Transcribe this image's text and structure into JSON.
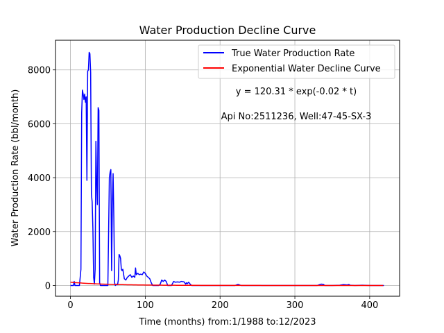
{
  "chart_data": {
    "type": "line",
    "title": "Water Production Decline Curve",
    "xlabel": "Time (months) from:1/1988 to:12/2023",
    "ylabel": "Water Production Rate (bbl/month)",
    "xlim": [
      -20,
      440
    ],
    "ylim": [
      -400,
      9100
    ],
    "xticks": [
      0,
      100,
      200,
      300,
      400
    ],
    "yticks": [
      0,
      2000,
      4000,
      6000,
      8000
    ],
    "grid": true,
    "legend_position": "top-right",
    "annotations": [
      "y = 120.31 * exp(-0.02 * t)",
      "Api No:2511236, Well:47-45-SX-3"
    ],
    "series": [
      {
        "name": "True Water Production Rate",
        "color": "#0000ff",
        "points": [
          [
            0,
            0
          ],
          [
            2,
            0
          ],
          [
            4,
            0
          ],
          [
            5,
            150
          ],
          [
            6,
            0
          ],
          [
            8,
            0
          ],
          [
            10,
            0
          ],
          [
            12,
            0
          ],
          [
            13,
            300
          ],
          [
            14,
            600
          ],
          [
            15,
            6400
          ],
          [
            16,
            7250
          ],
          [
            17,
            7100
          ],
          [
            18,
            6900
          ],
          [
            19,
            7100
          ],
          [
            20,
            6800
          ],
          [
            21,
            7000
          ],
          [
            22,
            3900
          ],
          [
            23,
            7950
          ],
          [
            24,
            8000
          ],
          [
            25,
            8650
          ],
          [
            26,
            8600
          ],
          [
            27,
            7900
          ],
          [
            28,
            3400
          ],
          [
            29,
            3100
          ],
          [
            30,
            2100
          ],
          [
            31,
            300
          ],
          [
            32,
            50
          ],
          [
            33,
            600
          ],
          [
            34,
            5350
          ],
          [
            35,
            3800
          ],
          [
            36,
            3000
          ],
          [
            37,
            6600
          ],
          [
            38,
            6500
          ],
          [
            39,
            100
          ],
          [
            40,
            0
          ],
          [
            42,
            0
          ],
          [
            45,
            0
          ],
          [
            48,
            0
          ],
          [
            50,
            0
          ],
          [
            51,
            2000
          ],
          [
            52,
            4000
          ],
          [
            53,
            4200
          ],
          [
            54,
            4300
          ],
          [
            55,
            550
          ],
          [
            56,
            3000
          ],
          [
            57,
            4150
          ],
          [
            58,
            2500
          ],
          [
            59,
            100
          ],
          [
            60,
            0
          ],
          [
            62,
            50
          ],
          [
            63,
            30
          ],
          [
            64,
            200
          ],
          [
            65,
            1150
          ],
          [
            66,
            1100
          ],
          [
            67,
            1000
          ],
          [
            68,
            600
          ],
          [
            69,
            550
          ],
          [
            70,
            600
          ],
          [
            72,
            250
          ],
          [
            74,
            200
          ],
          [
            76,
            300
          ],
          [
            78,
            350
          ],
          [
            80,
            400
          ],
          [
            82,
            300
          ],
          [
            84,
            350
          ],
          [
            86,
            300
          ],
          [
            87,
            650
          ],
          [
            88,
            400
          ],
          [
            90,
            450
          ],
          [
            92,
            400
          ],
          [
            94,
            420
          ],
          [
            96,
            400
          ],
          [
            98,
            500
          ],
          [
            100,
            450
          ],
          [
            102,
            350
          ],
          [
            104,
            300
          ],
          [
            106,
            250
          ],
          [
            108,
            100
          ],
          [
            110,
            0
          ],
          [
            115,
            0
          ],
          [
            118,
            0
          ],
          [
            120,
            50
          ],
          [
            122,
            200
          ],
          [
            124,
            150
          ],
          [
            126,
            200
          ],
          [
            128,
            150
          ],
          [
            130,
            0
          ],
          [
            135,
            0
          ],
          [
            138,
            150
          ],
          [
            140,
            120
          ],
          [
            143,
            130
          ],
          [
            146,
            120
          ],
          [
            148,
            150
          ],
          [
            150,
            140
          ],
          [
            152,
            130
          ],
          [
            154,
            50
          ],
          [
            155,
            100
          ],
          [
            156,
            60
          ],
          [
            158,
            120
          ],
          [
            160,
            50
          ],
          [
            162,
            0
          ],
          [
            180,
            0
          ],
          [
            200,
            0
          ],
          [
            220,
            0
          ],
          [
            222,
            20
          ],
          [
            224,
            40
          ],
          [
            226,
            20
          ],
          [
            228,
            0
          ],
          [
            260,
            0
          ],
          [
            300,
            0
          ],
          [
            330,
            0
          ],
          [
            333,
            30
          ],
          [
            335,
            50
          ],
          [
            338,
            40
          ],
          [
            340,
            0
          ],
          [
            350,
            0
          ],
          [
            360,
            10
          ],
          [
            365,
            30
          ],
          [
            370,
            20
          ],
          [
            372,
            35
          ],
          [
            374,
            10
          ],
          [
            380,
            0
          ],
          [
            390,
            10
          ],
          [
            400,
            0
          ],
          [
            410,
            0
          ],
          [
            419,
            0
          ]
        ]
      },
      {
        "name": "Exponential Water Decline Curve",
        "color": "#ff0000",
        "function": "exponential",
        "a": 120.31,
        "b": -0.02,
        "x_range": [
          0,
          419
        ]
      }
    ]
  }
}
